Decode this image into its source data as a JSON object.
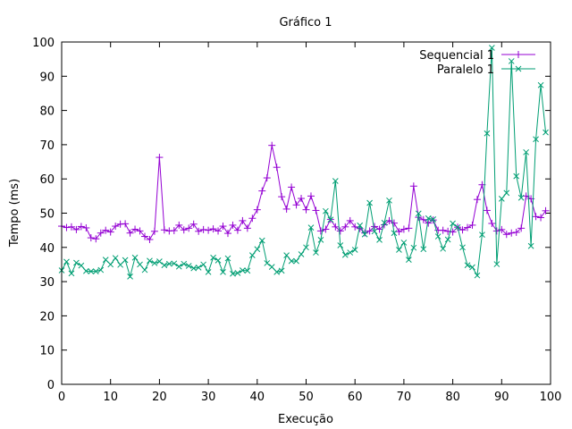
{
  "chart_data": {
    "type": "line",
    "title": "Gráfico 1",
    "xlabel": "Execução",
    "ylabel": "Tempo (ms)",
    "xlim": [
      0,
      100
    ],
    "ylim": [
      0,
      100
    ],
    "xticks": [
      0,
      10,
      20,
      30,
      40,
      50,
      60,
      70,
      80,
      90,
      100
    ],
    "yticks": [
      0,
      10,
      20,
      30,
      40,
      50,
      60,
      70,
      80,
      90,
      100
    ],
    "grid": false,
    "legend_position": "top-right",
    "x": [
      0,
      1,
      2,
      3,
      4,
      5,
      6,
      7,
      8,
      9,
      10,
      11,
      12,
      13,
      14,
      15,
      16,
      17,
      18,
      19,
      20,
      21,
      22,
      23,
      24,
      25,
      26,
      27,
      28,
      29,
      30,
      31,
      32,
      33,
      34,
      35,
      36,
      37,
      38,
      39,
      40,
      41,
      42,
      43,
      44,
      45,
      46,
      47,
      48,
      49,
      50,
      51,
      52,
      53,
      54,
      55,
      56,
      57,
      58,
      59,
      60,
      61,
      62,
      63,
      64,
      65,
      66,
      67,
      68,
      69,
      70,
      71,
      72,
      73,
      74,
      75,
      76,
      77,
      78,
      79,
      80,
      81,
      82,
      83,
      84,
      85,
      86,
      87,
      88,
      89,
      90,
      91,
      92,
      93,
      94,
      95,
      96,
      97,
      98,
      99
    ],
    "series": [
      {
        "name": "Sequencial 1",
        "color": "#9400d3",
        "marker": "+",
        "values": [
          46.2,
          45.8,
          46.0,
          45.2,
          46.1,
          45.7,
          42.8,
          42.5,
          44.2,
          45.0,
          44.5,
          46.2,
          46.8,
          46.9,
          44.2,
          45.3,
          44.8,
          43.2,
          42.3,
          44.7,
          66.3,
          45.1,
          44.8,
          44.9,
          46.5,
          45.1,
          45.6,
          46.8,
          44.7,
          45.2,
          45.0,
          45.4,
          44.8,
          46.2,
          44.1,
          46.5,
          45.0,
          47.8,
          45.6,
          48.5,
          51.0,
          56.5,
          60.3,
          69.8,
          63.4,
          54.8,
          51.2,
          57.6,
          52.4,
          54.3,
          51.0,
          55.0,
          50.8,
          44.8,
          45.3,
          48.2,
          46.0,
          44.8,
          46.0,
          47.8,
          46.0,
          45.5,
          44.2,
          44.8,
          46.1,
          45.3,
          46.6,
          47.8,
          47.1,
          44.6,
          45.3,
          45.6,
          57.9,
          48.8,
          48.1,
          47.1,
          48.0,
          45.0,
          45.0,
          44.7,
          44.5,
          45.9,
          45.1,
          45.8,
          46.5,
          54.0,
          58.3,
          50.8,
          47.0,
          44.8,
          45.2,
          43.8,
          44.2,
          44.4,
          45.6,
          55.0,
          54.2,
          49.0,
          48.7,
          50.7
        ]
      },
      {
        "name": "Paralelo 1",
        "color": "#009e73",
        "marker": "x",
        "values": [
          33.3,
          35.8,
          32.4,
          35.5,
          34.7,
          33.1,
          33.0,
          33.0,
          33.4,
          36.4,
          35.0,
          36.9,
          34.9,
          36.3,
          31.5,
          37.0,
          35.0,
          33.4,
          36.1,
          35.4,
          35.9,
          34.8,
          35.2,
          35.3,
          34.4,
          35.2,
          34.6,
          33.9,
          34.1,
          35.0,
          32.8,
          37.0,
          36.2,
          32.8,
          36.8,
          32.3,
          32.5,
          33.3,
          33.2,
          37.7,
          39.5,
          42.0,
          35.4,
          34.3,
          32.8,
          33.2,
          37.7,
          36.0,
          36.0,
          38.0,
          40.0,
          45.8,
          38.5,
          42.2,
          50.6,
          48.1,
          59.4,
          40.6,
          37.8,
          38.5,
          39.3,
          46.4,
          43.8,
          53.0,
          44.7,
          42.2,
          47.2,
          53.7,
          44.2,
          39.3,
          41.4,
          36.4,
          39.9,
          49.9,
          39.5,
          48.5,
          48.2,
          43.2,
          39.6,
          42.3,
          47.0,
          45.9,
          40.0,
          34.8,
          34.2,
          31.8,
          43.7,
          73.3,
          98.3,
          35.1,
          54.2,
          55.9,
          94.4,
          60.8,
          54.5,
          67.8,
          40.4,
          71.6,
          87.4,
          73.6
        ]
      }
    ]
  }
}
